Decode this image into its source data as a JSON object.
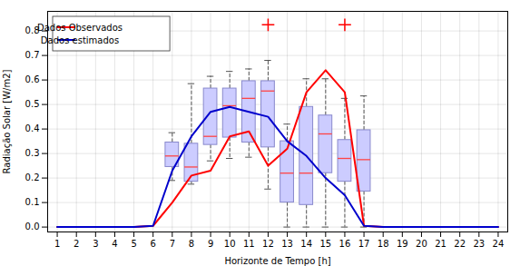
{
  "chart_data": {
    "type": "box",
    "xlabel": "Horizonte de Tempo [h]",
    "ylabel": "Radiação Solar [W/m2]",
    "xlim": [
      0.5,
      24.5
    ],
    "ylim": [
      -0.02,
      0.88
    ],
    "xticks": [
      1,
      2,
      3,
      4,
      5,
      6,
      7,
      8,
      9,
      10,
      11,
      12,
      13,
      14,
      15,
      16,
      17,
      18,
      19,
      20,
      21,
      22,
      23,
      24
    ],
    "yticks": [
      {
        "value": 0.0,
        "label": "0.0"
      },
      0.1,
      0.2,
      0.3,
      0.4,
      0.5,
      0.6,
      0.7,
      0.8
    ],
    "grid": true,
    "legend": "upper left",
    "boxes": {
      "color": "#ccccff",
      "x": [
        7,
        8,
        9,
        10,
        11,
        12,
        13,
        14,
        15,
        16,
        17
      ],
      "q1": [
        0.245,
        0.185,
        0.335,
        0.365,
        0.345,
        0.325,
        0.1,
        0.09,
        0.22,
        0.185,
        0.145
      ],
      "median": [
        0.29,
        0.245,
        0.37,
        0.495,
        0.525,
        0.555,
        0.22,
        0.22,
        0.38,
        0.28,
        0.275
      ],
      "q3": [
        0.345,
        0.34,
        0.565,
        0.565,
        0.595,
        0.595,
        0.35,
        0.49,
        0.455,
        0.355,
        0.395
      ],
      "whislo": [
        0.19,
        0.175,
        0.27,
        0.28,
        0.285,
        0.155,
        0.0,
        0.0,
        0.0,
        0.0,
        0.0
      ],
      "whishi": [
        0.385,
        0.585,
        0.615,
        0.635,
        0.645,
        0.68,
        0.42,
        0.605,
        0.605,
        0.525,
        0.535
      ]
    },
    "series": [
      {
        "name": "Dados Observados",
        "type": "line",
        "color": "#ff0000",
        "x": [
          1,
          2,
          3,
          4,
          5,
          6,
          7,
          8,
          9,
          10,
          11,
          12,
          13,
          14,
          15,
          16,
          17,
          18,
          19,
          20,
          21,
          22,
          23,
          24
        ],
        "values": [
          0,
          0,
          0,
          0,
          0,
          0.005,
          0.1,
          0.21,
          0.23,
          0.37,
          0.39,
          0.25,
          0.32,
          0.55,
          0.64,
          0.55,
          0.005,
          0,
          0,
          0,
          0,
          0,
          0,
          0
        ]
      },
      {
        "name": "Dados estimados",
        "type": "line",
        "color": "#0000cc",
        "x": [
          1,
          2,
          3,
          4,
          5,
          6,
          7,
          8,
          9,
          10,
          11,
          12,
          13,
          14,
          15,
          16,
          17,
          18,
          19,
          20,
          21,
          22,
          23,
          24
        ],
        "values": [
          0,
          0,
          0,
          0,
          0,
          0.005,
          0.23,
          0.37,
          0.47,
          0.49,
          0.47,
          0.45,
          0.35,
          0.29,
          0.2,
          0.13,
          0.005,
          0,
          0,
          0,
          0,
          0,
          0,
          0
        ]
      },
      {
        "type": "scatter",
        "marker": "+",
        "color": "#ff0000",
        "x": [
          12,
          16
        ],
        "values": [
          0.825,
          0.825
        ]
      }
    ]
  }
}
